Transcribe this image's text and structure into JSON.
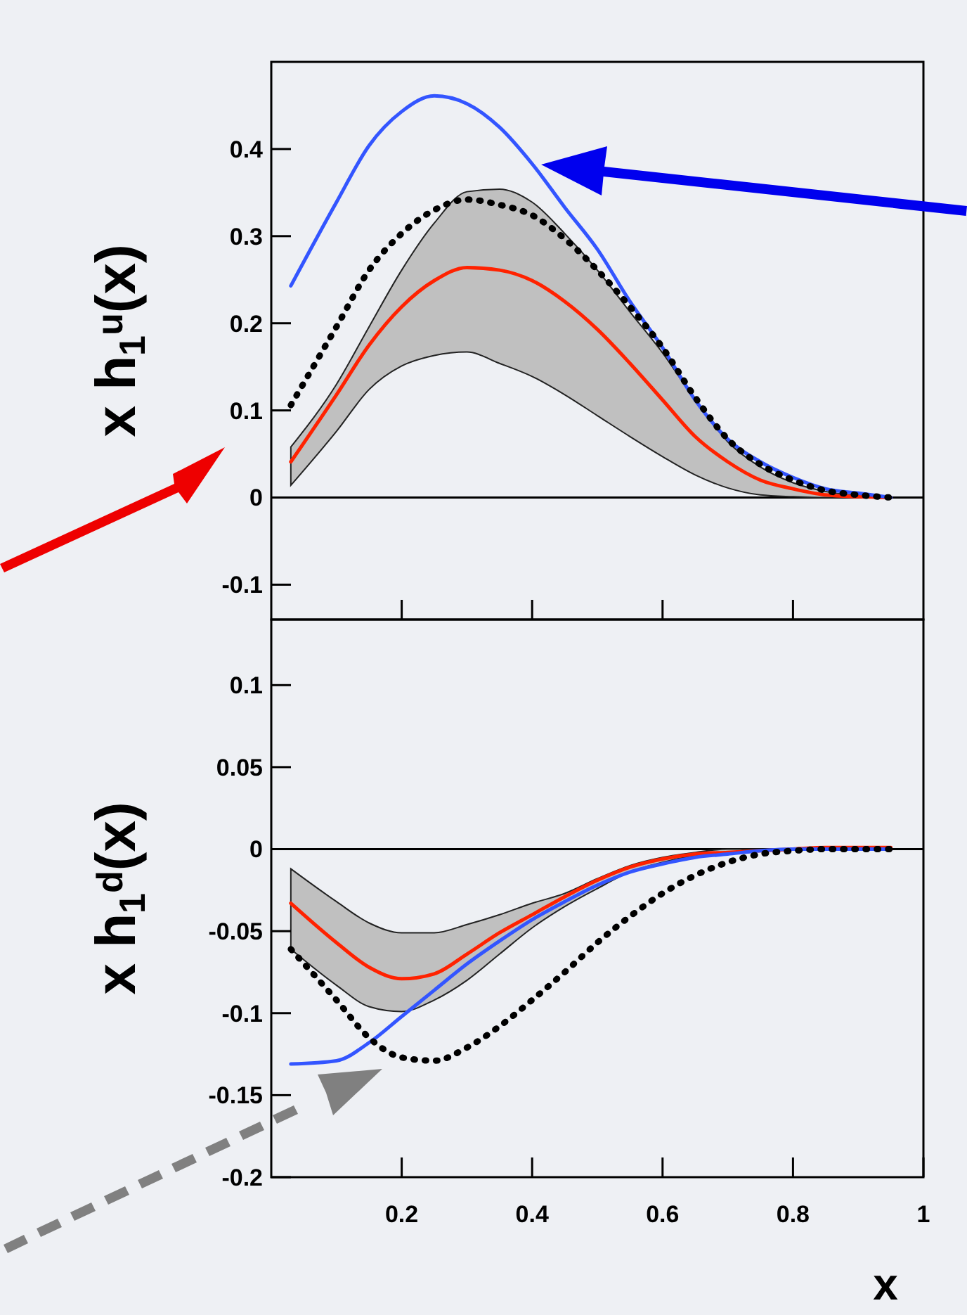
{
  "chart_data": [
    {
      "type": "line",
      "ylabel": "x h$_{1}$$^{u}$(x)",
      "xlim": [
        0,
        1
      ],
      "ylim": [
        -0.14,
        0.5
      ],
      "xticks": [
        0.2,
        0.4,
        0.6,
        0.8
      ],
      "yticks": [
        -0.1,
        0,
        0.1,
        0.2,
        0.3,
        0.4
      ],
      "tick_labels": "y",
      "grid": false,
      "marker": "none",
      "ref_lines": [
        {
          "axis": "y",
          "value": 0
        }
      ],
      "x": [
        0.03,
        0.1,
        0.15,
        0.2,
        0.25,
        0.3,
        0.35,
        0.4,
        0.45,
        0.5,
        0.55,
        0.6,
        0.65,
        0.7,
        0.75,
        0.8,
        0.85,
        0.9,
        0.95
      ],
      "series": [
        {
          "color": "#3355ff",
          "line_style": "solid",
          "values": [
            0.243,
            0.339,
            0.404,
            0.443,
            0.461,
            0.452,
            0.425,
            0.383,
            0.333,
            0.285,
            0.225,
            0.172,
            0.112,
            0.067,
            0.041,
            0.023,
            0.01,
            0.005,
            0
          ]
        },
        {
          "color": "#000000",
          "line_style": "dotted",
          "values": [
            0.106,
            0.196,
            0.261,
            0.303,
            0.33,
            0.342,
            0.336,
            0.324,
            0.297,
            0.261,
            0.219,
            0.172,
            0.115,
            0.067,
            0.038,
            0.02,
            0.008,
            0.003,
            0
          ]
        },
        {
          "color": "#ff2200",
          "line_style": "solid",
          "values": [
            0.041,
            0.118,
            0.175,
            0.219,
            0.249,
            0.264,
            0.261,
            0.249,
            0.225,
            0.193,
            0.154,
            0.112,
            0.07,
            0.041,
            0.02,
            0.01,
            0.003,
            0.001,
            0
          ],
          "lower": [
            0.014,
            0.076,
            0.124,
            0.151,
            0.163,
            0.167,
            0.154,
            0.139,
            0.118,
            0.094,
            0.07,
            0.047,
            0.026,
            0.011,
            0.003,
            0.001,
            0,
            0,
            0
          ],
          "upper": [
            0.058,
            0.13,
            0.196,
            0.261,
            0.315,
            0.351,
            0.354,
            0.339,
            0.303,
            0.261,
            0.213,
            0.166,
            0.112,
            0.064,
            0.035,
            0.017,
            0.007,
            0.002,
            0
          ]
        }
      ]
    },
    {
      "type": "line",
      "ylabel": "x h$_{1}$$^{d}$(x)",
      "xlabel": "x",
      "xlim": [
        0,
        1
      ],
      "ylim": [
        -0.2,
        0.14
      ],
      "xticks": [
        0.2,
        0.4,
        0.6,
        0.8,
        1
      ],
      "yticks": [
        -0.2,
        -0.15,
        -0.1,
        -0.05,
        0,
        0.05,
        0.1
      ],
      "grid": false,
      "marker": "none",
      "ref_lines": [
        {
          "axis": "y",
          "value": 0
        }
      ],
      "x": [
        0.03,
        0.1,
        0.15,
        0.2,
        0.25,
        0.3,
        0.35,
        0.4,
        0.45,
        0.5,
        0.55,
        0.6,
        0.65,
        0.7,
        0.75,
        0.8,
        0.85,
        0.9,
        0.95
      ],
      "series": [
        {
          "color": "#3355ff",
          "line_style": "solid",
          "values": [
            -0.131,
            -0.129,
            -0.118,
            -0.102,
            -0.086,
            -0.07,
            -0.056,
            -0.043,
            -0.032,
            -0.022,
            -0.014,
            -0.009,
            -0.005,
            -0.003,
            -0.001,
            0,
            0,
            0,
            0
          ]
        },
        {
          "color": "#000000",
          "line_style": "dotted",
          "values": [
            -0.061,
            -0.092,
            -0.115,
            -0.127,
            -0.129,
            -0.121,
            -0.108,
            -0.092,
            -0.075,
            -0.057,
            -0.041,
            -0.027,
            -0.016,
            -0.008,
            -0.003,
            -0.001,
            0,
            0,
            0
          ]
        },
        {
          "color": "#ff2200",
          "line_style": "solid",
          "values": [
            -0.033,
            -0.057,
            -0.072,
            -0.079,
            -0.076,
            -0.064,
            -0.051,
            -0.04,
            -0.029,
            -0.019,
            -0.011,
            -0.006,
            -0.003,
            -0.002,
            -0.001,
            0,
            0.001,
            0.001,
            0.001
          ],
          "lower": [
            -0.061,
            -0.083,
            -0.096,
            -0.099,
            -0.092,
            -0.08,
            -0.064,
            -0.048,
            -0.035,
            -0.024,
            -0.014,
            -0.008,
            -0.004,
            -0.002,
            0,
            0,
            0,
            0,
            0
          ],
          "upper": [
            -0.012,
            -0.032,
            -0.045,
            -0.051,
            -0.051,
            -0.046,
            -0.04,
            -0.033,
            -0.027,
            -0.018,
            -0.01,
            -0.005,
            -0.002,
            0,
            0,
            0,
            0,
            0,
            0
          ]
        }
      ]
    }
  ]
}
